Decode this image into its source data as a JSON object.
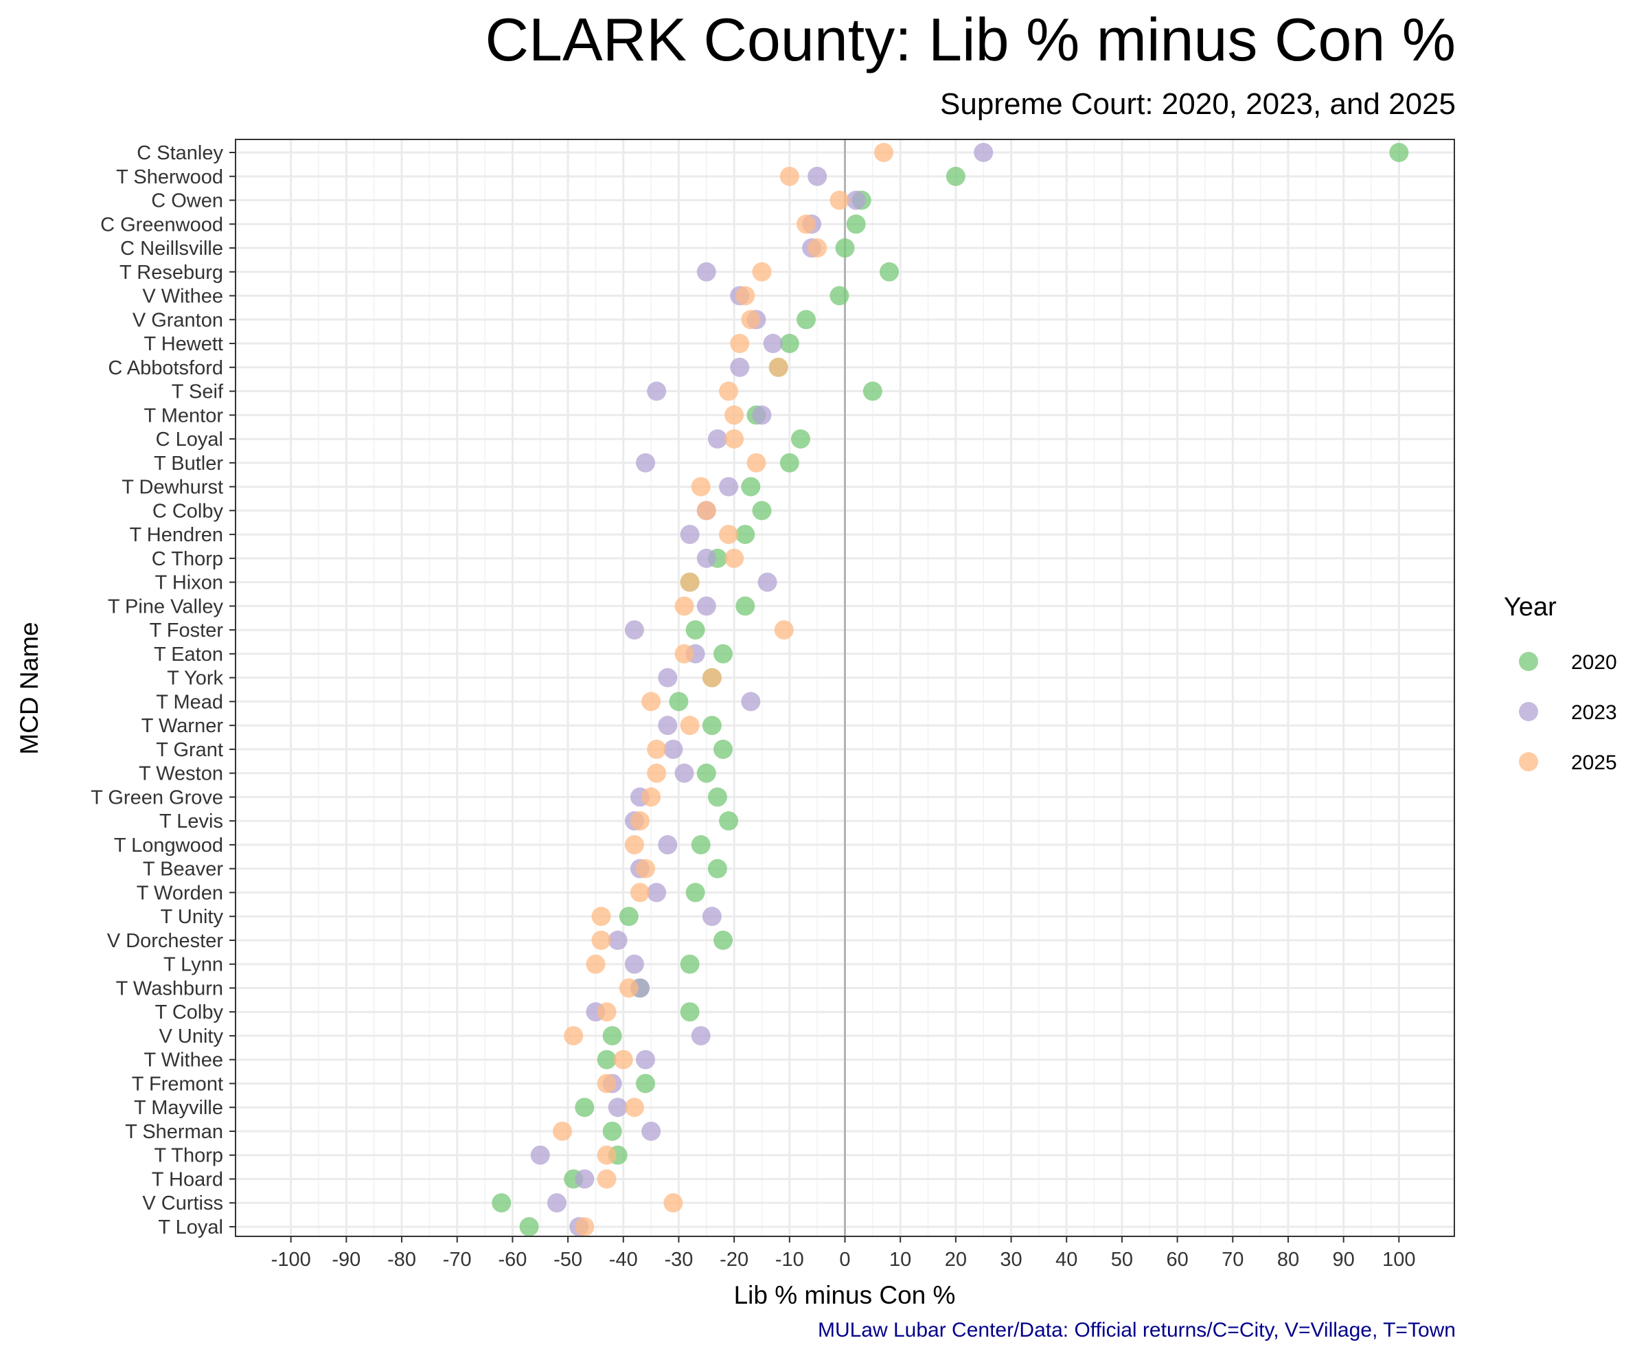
{
  "chart_data": {
    "type": "scatter",
    "title": "CLARK County: Lib % minus Con %",
    "subtitle": "Supreme Court: 2020, 2023, and 2025",
    "xlabel": "Lib % minus Con %",
    "ylabel": "MCD Name",
    "caption": "MULaw Lubar Center/Data: Official returns/C=City, V=Village, T=Town",
    "xlim": [
      -110,
      110
    ],
    "xticks": [
      -100,
      -90,
      -80,
      -70,
      -60,
      -50,
      -40,
      -30,
      -20,
      -10,
      0,
      10,
      20,
      30,
      40,
      50,
      60,
      70,
      80,
      90,
      100
    ],
    "xtick_labels": [
      "-100",
      "-90",
      "-80",
      "-70",
      "-60",
      "-50",
      "-40",
      "-30",
      "-20",
      "-10",
      "0",
      "10",
      "20",
      "30",
      "40",
      "50",
      "60",
      "70",
      "80",
      "90",
      "100"
    ],
    "grid": true,
    "legend": {
      "title": "Year",
      "position": "right"
    },
    "categories": [
      "C Stanley",
      "T Sherwood",
      "C Owen",
      "C Greenwood",
      "C Neillsville",
      "T Reseburg",
      "V Withee",
      "V Granton",
      "T Hewett",
      "C Abbotsford",
      "T Seif",
      "T Mentor",
      "C Loyal",
      "T Butler",
      "T Dewhurst",
      "C Colby",
      "T Hendren",
      "C Thorp",
      "T Hixon",
      "T Pine Valley",
      "T Foster",
      "T Eaton",
      "T York",
      "T Mead",
      "T Warner",
      "T Grant",
      "T Weston",
      "T Green Grove",
      "T Levis",
      "T Longwood",
      "T Beaver",
      "T Worden",
      "T Unity",
      "V Dorchester",
      "T Lynn",
      "T Washburn",
      "T Colby",
      "V Unity",
      "T Withee",
      "T Fremont",
      "T Mayville",
      "T Sherman",
      "T Thorp",
      "T Hoard",
      "V Curtiss",
      "T Loyal"
    ],
    "series": [
      {
        "name": "2020",
        "color": "#77c877",
        "values": [
          100,
          20,
          3,
          2,
          0,
          8,
          -1,
          -7,
          -10,
          -12,
          5,
          -16,
          -8,
          -10,
          -17,
          -15,
          -18,
          -23,
          -28,
          -18,
          -27,
          -22,
          -24,
          -30,
          -24,
          -22,
          -25,
          -23,
          -21,
          -26,
          -23,
          -27,
          -39,
          -22,
          -28,
          -37,
          -28,
          -42,
          -43,
          -36,
          -47,
          -42,
          -41,
          -49,
          -62,
          -57
        ]
      },
      {
        "name": "2023",
        "color": "#b3a3d3",
        "values": [
          25,
          -5,
          2,
          -6,
          -6,
          -25,
          -19,
          -16,
          -13,
          -19,
          -34,
          -15,
          -23,
          -36,
          -21,
          -25,
          -28,
          -25,
          -14,
          -25,
          -38,
          -27,
          -32,
          -17,
          -32,
          -31,
          -29,
          -37,
          -38,
          -32,
          -37,
          -34,
          -24,
          -41,
          -38,
          -37,
          -45,
          -26,
          -36,
          -42,
          -41,
          -35,
          -55,
          -47,
          -52,
          -48
        ]
      },
      {
        "name": "2025",
        "color": "#fdba84",
        "values": [
          7,
          -10,
          -1,
          -7,
          -5,
          -15,
          -18,
          -17,
          -19,
          -12,
          -21,
          -20,
          -20,
          -16,
          -26,
          -25,
          -21,
          -20,
          -28,
          -29,
          -11,
          -29,
          -24,
          -35,
          -28,
          -34,
          -34,
          -35,
          -37,
          -38,
          -36,
          -37,
          -44,
          -44,
          -45,
          -39,
          -43,
          -49,
          -40,
          -43,
          -38,
          -51,
          -43,
          -43,
          -31,
          -47
        ]
      }
    ]
  }
}
